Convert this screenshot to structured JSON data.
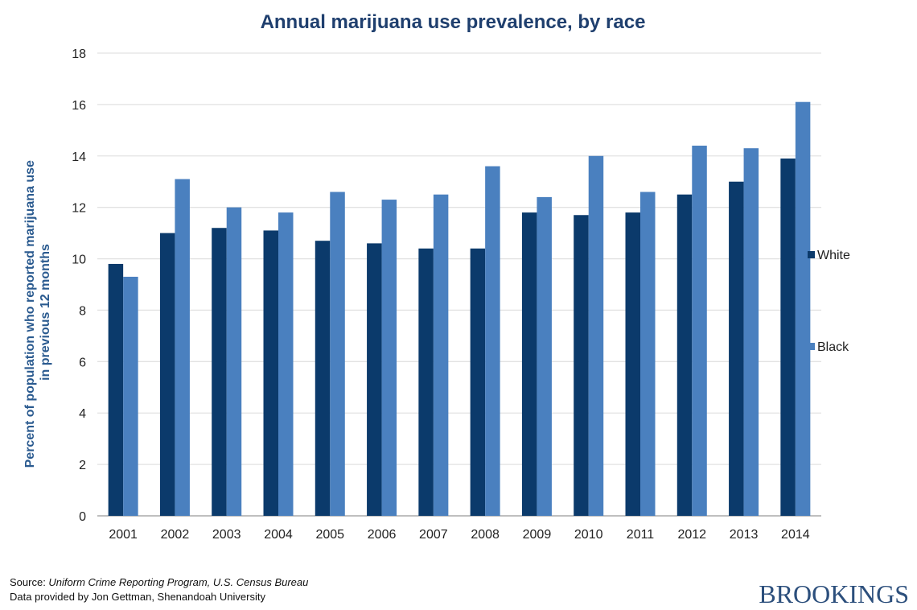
{
  "chart_data": {
    "type": "bar",
    "title": "Annual marijuana use prevalence, by race",
    "xlabel": "",
    "ylabel_lines": [
      "Percent of population who reported marijuana use",
      "in previous 12 months"
    ],
    "ylim": [
      0,
      18
    ],
    "yticks": [
      0,
      2,
      4,
      6,
      8,
      10,
      12,
      14,
      16,
      18
    ],
    "grid": true,
    "legend_placement": "right",
    "categories": [
      "2001",
      "2002",
      "2003",
      "2004",
      "2005",
      "2006",
      "2007",
      "2008",
      "2009",
      "2010",
      "2011",
      "2012",
      "2013",
      "2014"
    ],
    "series": [
      {
        "name": "White",
        "color": "#0b3a6b",
        "values": [
          9.8,
          11.0,
          11.2,
          11.1,
          10.7,
          10.6,
          10.4,
          10.4,
          11.8,
          11.7,
          11.8,
          12.5,
          13.0,
          13.9
        ]
      },
      {
        "name": "Black",
        "color": "#4a80bf",
        "values": [
          9.3,
          13.1,
          12.0,
          11.8,
          12.6,
          12.3,
          12.5,
          13.6,
          12.4,
          14.0,
          12.6,
          14.4,
          14.3,
          16.1
        ]
      }
    ]
  },
  "footer": {
    "source_prefix": "Source: ",
    "source_text": "Uniform Crime Reporting Program, U.S. Census Bureau",
    "provided_by": "Data provided by Jon Gettman, Shenandoah University",
    "logo": "BROOKINGS"
  }
}
